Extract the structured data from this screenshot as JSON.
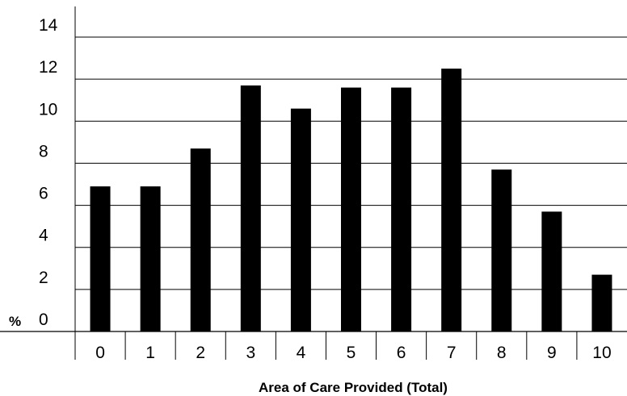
{
  "chart_data": {
    "type": "bar",
    "title": "",
    "xlabel": "Area of Care Provided (Total)",
    "ylabel": "%",
    "categories": [
      "0",
      "1",
      "2",
      "3",
      "4",
      "5",
      "6",
      "7",
      "8",
      "9",
      "10"
    ],
    "values": [
      6.9,
      6.9,
      8.7,
      11.7,
      10.6,
      11.6,
      11.6,
      12.5,
      7.7,
      5.7,
      2.7
    ],
    "ylim": [
      0,
      14
    ],
    "yticks": [
      "0",
      "2",
      "4",
      "6",
      "8",
      "10",
      "12",
      "14"
    ],
    "grid": true,
    "bar_color": "#000000",
    "legend": "none"
  }
}
